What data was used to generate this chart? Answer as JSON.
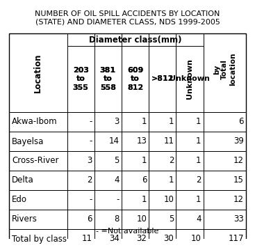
{
  "title_line1": "NUMBER OF OIL SPILL ACCIDENTS BY LOCATION",
  "title_line2": "(STATE) AND DIAMETER CLASS, NDS 1999-2005",
  "col_header_span": "Diameter class(mm)",
  "col_headers_data": [
    "203\nto\n355",
    "381\nto\n558",
    "609\nto\n812",
    ">812",
    "Unknown"
  ],
  "row_header": "Location",
  "total_col_header": "Total\nby\nlocation",
  "rows": [
    [
      "Akwa-Ibom",
      "-",
      "3",
      "1",
      "1",
      "1",
      "6"
    ],
    [
      "Bayelsa",
      "-",
      "14",
      "13",
      "11",
      "1",
      "39"
    ],
    [
      "Cross-River",
      "3",
      "5",
      "1",
      "2",
      "1",
      "12"
    ],
    [
      "Delta",
      "2",
      "4",
      "6",
      "1",
      "2",
      "15"
    ],
    [
      "Edo",
      "-",
      "-",
      "1",
      "10",
      "1",
      "12"
    ],
    [
      "Rivers",
      "6",
      "8",
      "10",
      "5",
      "4",
      "33"
    ],
    [
      "Total by class",
      "11",
      "34",
      "32",
      "30",
      "10",
      "117"
    ]
  ],
  "footnote": "- =Not available",
  "bg_color": "#ffffff",
  "text_color": "#000000"
}
